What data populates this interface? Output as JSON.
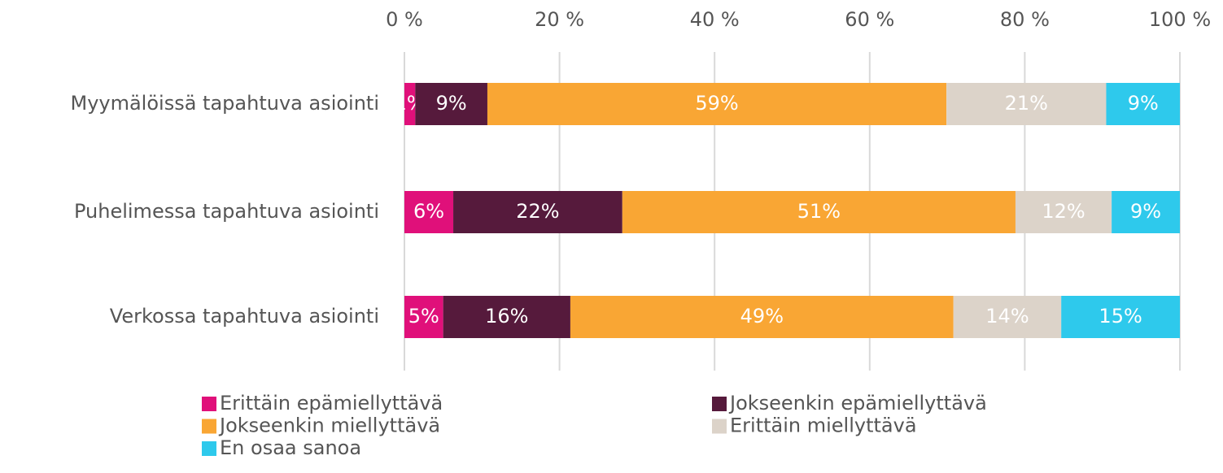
{
  "chart_data": {
    "type": "stacked-bar-horizontal",
    "categories": [
      "Myymälöissä tapahtuva asiointi",
      "Puhelimessa tapahtuva asiointi",
      "Verkossa tapahtuva asiointi"
    ],
    "series": [
      {
        "name": "Erittäin epämiellyttävä",
        "color": "#e0107a",
        "values": [
          1.4,
          6.3,
          5.0
        ],
        "value_labels": [
          "1%",
          "6%",
          "5%"
        ]
      },
      {
        "name": "Jokseenkin epämiellyttävä",
        "color": "#561a3c",
        "values": [
          9.3,
          21.8,
          16.4
        ],
        "value_labels": [
          "9%",
          "22%",
          "16%"
        ]
      },
      {
        "name": "Jokseenkin miellyttävä",
        "color": "#f9a634",
        "values": [
          59.2,
          50.7,
          49.4
        ],
        "value_labels": [
          "59%",
          "51%",
          "49%"
        ]
      },
      {
        "name": "Erittäin miellyttävä",
        "color": "#dcd3c9",
        "values": [
          20.6,
          12.4,
          13.9
        ],
        "value_labels": [
          "21%",
          "12%",
          "14%"
        ]
      },
      {
        "name": "En osaa sanoa",
        "color": "#2ec9ec",
        "values": [
          9.5,
          8.8,
          15.3
        ],
        "value_labels": [
          "9%",
          "9%",
          "15%"
        ]
      }
    ],
    "xlim": [
      0,
      100
    ],
    "xticks": [
      {
        "value": 0,
        "label": "0 %"
      },
      {
        "value": 20,
        "label": "20 %"
      },
      {
        "value": 40,
        "label": "40 %"
      },
      {
        "value": 60,
        "label": "60 %"
      },
      {
        "value": 80,
        "label": "80 %"
      },
      {
        "value": 100,
        "label": "100 %"
      }
    ],
    "grid": true
  }
}
